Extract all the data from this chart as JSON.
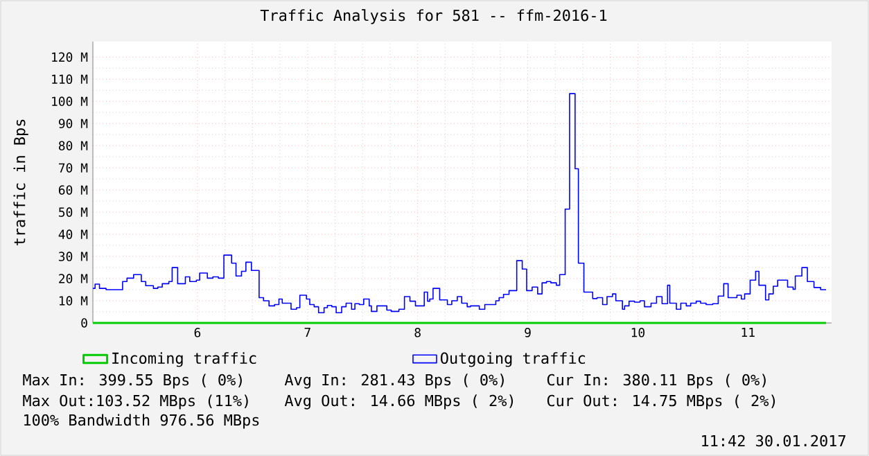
{
  "chart_data": {
    "type": "step",
    "title": "Traffic Analysis for 581 -- ffm-2016-1",
    "ylabel": "traffic in Bps",
    "xlim": [
      5.05,
      11.76
    ],
    "xticks": [
      6,
      7,
      8,
      9,
      10,
      11
    ],
    "ylim": [
      0,
      127
    ],
    "yticks": [
      0,
      {
        "value": 10,
        "label": "10 M"
      },
      {
        "value": 20,
        "label": "20 M"
      },
      {
        "value": 30,
        "label": "30 M"
      },
      {
        "value": 40,
        "label": "40 M"
      },
      {
        "value": 50,
        "label": "50 M"
      },
      {
        "value": 60,
        "label": "60 M"
      },
      {
        "value": 70,
        "label": "70 M"
      },
      {
        "value": 80,
        "label": "80 M"
      },
      {
        "value": 90,
        "label": "90 M"
      },
      {
        "value": 100,
        "label": "100 M"
      },
      {
        "value": 110,
        "label": "110 M"
      },
      {
        "value": 120,
        "label": "120 M"
      }
    ],
    "grid": true,
    "legend": "bottom",
    "series": [
      {
        "name": "Incoming traffic",
        "color": "#00cc00",
        "type": "line",
        "x": [
          5.05,
          11.71
        ],
        "values": [
          0,
          0
        ]
      },
      {
        "name": "Outgoing traffic",
        "color": "#0000ff",
        "x": [
          5.05,
          5.07,
          5.11,
          5.17,
          5.32,
          5.36,
          5.42,
          5.49,
          5.53,
          5.6,
          5.64,
          5.68,
          5.74,
          5.77,
          5.82,
          5.89,
          5.93,
          5.99,
          6.02,
          6.09,
          6.14,
          6.19,
          6.24,
          6.31,
          6.35,
          6.4,
          6.44,
          6.49,
          6.56,
          6.6,
          6.65,
          6.7,
          6.74,
          6.77,
          6.85,
          6.9,
          6.93,
          6.99,
          7.02,
          7.06,
          7.1,
          7.15,
          7.18,
          7.22,
          7.26,
          7.31,
          7.35,
          7.4,
          7.43,
          7.47,
          7.51,
          7.56,
          7.58,
          7.63,
          7.72,
          7.76,
          7.83,
          7.88,
          7.93,
          7.98,
          8.06,
          8.09,
          8.11,
          8.14,
          8.2,
          8.27,
          8.31,
          8.36,
          8.4,
          8.45,
          8.48,
          8.56,
          8.61,
          8.71,
          8.74,
          8.78,
          8.83,
          8.9,
          8.95,
          8.99,
          9.04,
          9.09,
          9.13,
          9.17,
          9.21,
          9.26,
          9.29,
          9.34,
          9.38,
          9.43,
          9.46,
          9.51,
          9.59,
          9.63,
          9.68,
          9.72,
          9.77,
          9.8,
          9.86,
          9.88,
          9.92,
          9.97,
          10.02,
          10.06,
          10.12,
          10.17,
          10.22,
          10.27,
          10.29,
          10.35,
          10.39,
          10.44,
          10.48,
          10.53,
          10.57,
          10.62,
          10.68,
          10.73,
          10.78,
          10.82,
          10.9,
          10.94,
          10.97,
          11.02,
          11.07,
          11.1,
          11.16,
          11.19,
          11.23,
          11.27,
          11.36,
          11.41,
          11.43,
          11.49,
          11.54,
          11.6,
          11.66,
          11.71
        ],
        "values": [
          15.6,
          17.5,
          15.6,
          15,
          18.7,
          20.2,
          21.8,
          18.7,
          16.8,
          15.6,
          16.2,
          17.7,
          18.7,
          25,
          17.7,
          20.8,
          18.7,
          19.3,
          22.5,
          20.2,
          20.8,
          20.2,
          30.6,
          27,
          21.2,
          23.3,
          27.4,
          23.7,
          11.4,
          10,
          7.7,
          8.3,
          10.8,
          8.9,
          6.2,
          6.9,
          12.5,
          10.8,
          8.3,
          7.3,
          4.6,
          6.9,
          7.9,
          7.3,
          4.6,
          7.3,
          8.9,
          6.2,
          8.7,
          8.3,
          10.8,
          7.7,
          5.2,
          7.7,
          5.8,
          5.2,
          6.2,
          11.9,
          9.8,
          7.7,
          13.9,
          9.8,
          10.8,
          15.6,
          10.4,
          8.3,
          10,
          11.9,
          8.9,
          7.3,
          7.7,
          6.2,
          8.3,
          10,
          11.4,
          12.9,
          14.6,
          28.1,
          24.3,
          14.6,
          16.2,
          13.1,
          18.1,
          18.7,
          18.1,
          17,
          21.8,
          51.4,
          103.5,
          69.6,
          27,
          13.9,
          11,
          11.4,
          8.3,
          11.9,
          13.1,
          10,
          6.2,
          7.7,
          9.8,
          9.4,
          10,
          7.3,
          8.9,
          11.9,
          8.7,
          17,
          8.9,
          6.2,
          8.9,
          7.7,
          8.9,
          9.8,
          8.9,
          8.3,
          8.7,
          12.1,
          17.7,
          11.4,
          12.5,
          10.8,
          13.1,
          19.3,
          23.3,
          17,
          10.4,
          13.1,
          16.6,
          19.3,
          16.2,
          15.2,
          21.2,
          25,
          18.7,
          16,
          15,
          15
        ]
      }
    ],
    "annotations": [
      "Max In: 399.55 Bps ( 0%)",
      "Avg In: 281.43 Bps ( 0%)",
      "Cur In: 380.11 Bps ( 0%)",
      "Max Out:103.52 MBps (11%)",
      "Avg Out: 14.66 MBps ( 2%)",
      "Cur Out: 14.75 MBps ( 2%)",
      "100% Bandwidth 976.56 MBps",
      "11:42 30.01.2017"
    ]
  }
}
